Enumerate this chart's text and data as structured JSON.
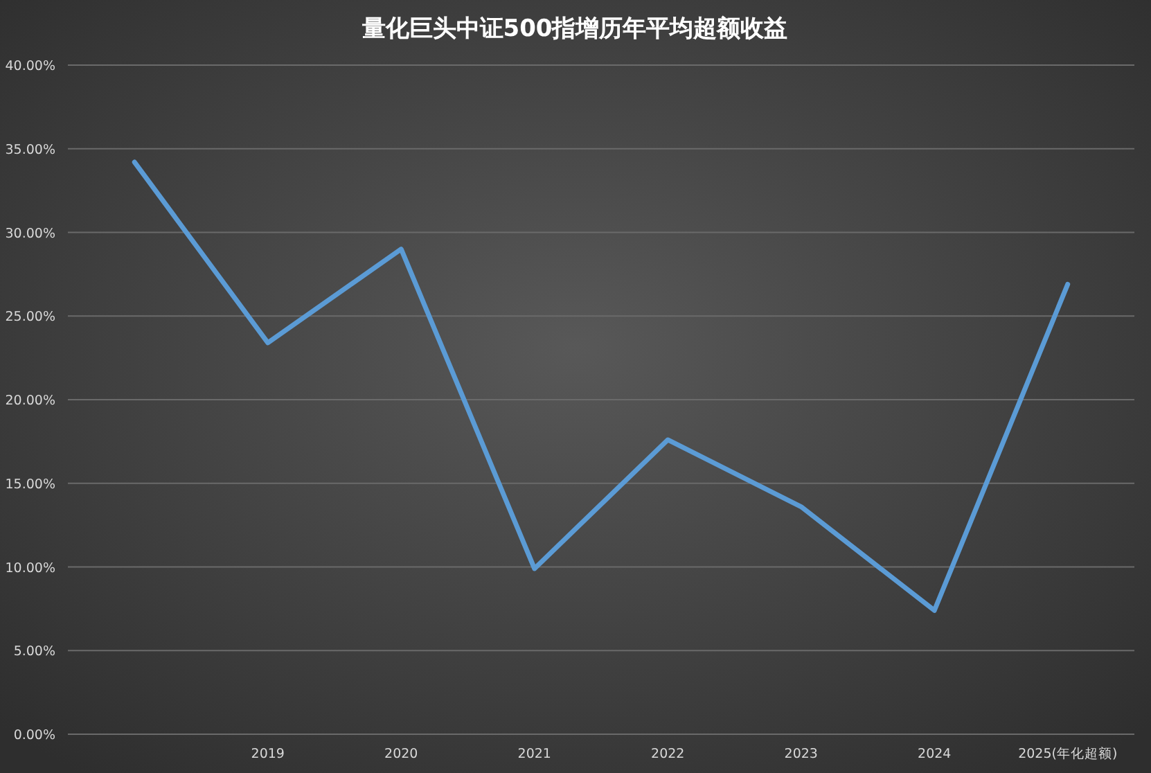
{
  "chart_data": {
    "type": "line",
    "title": "量化巨头中证500指增历年平均超额收益",
    "categories": [
      null,
      "2019",
      "2020",
      "2021",
      "2022",
      "2023",
      "2024",
      "2025(年化超额)"
    ],
    "series": [
      {
        "color": "#5b9bd5",
        "values": [
          34.2,
          23.4,
          29.0,
          9.9,
          17.6,
          13.6,
          7.4,
          26.9
        ]
      }
    ],
    "ylim": [
      0,
      40
    ],
    "yticks": [
      {
        "value": 0,
        "label": "0.00%"
      },
      {
        "value": 5,
        "label": "5.00%"
      },
      {
        "value": 10,
        "label": "10.00%"
      },
      {
        "value": 15,
        "label": "15.00%"
      },
      {
        "value": 20,
        "label": "20.00%"
      },
      {
        "value": 25,
        "label": "25.00%"
      },
      {
        "value": 30,
        "label": "30.00%"
      },
      {
        "value": 35,
        "label": "35.00%"
      },
      {
        "value": 40,
        "label": "40.00%"
      }
    ],
    "grid": "y",
    "marker": "none",
    "line_style": "solid"
  }
}
